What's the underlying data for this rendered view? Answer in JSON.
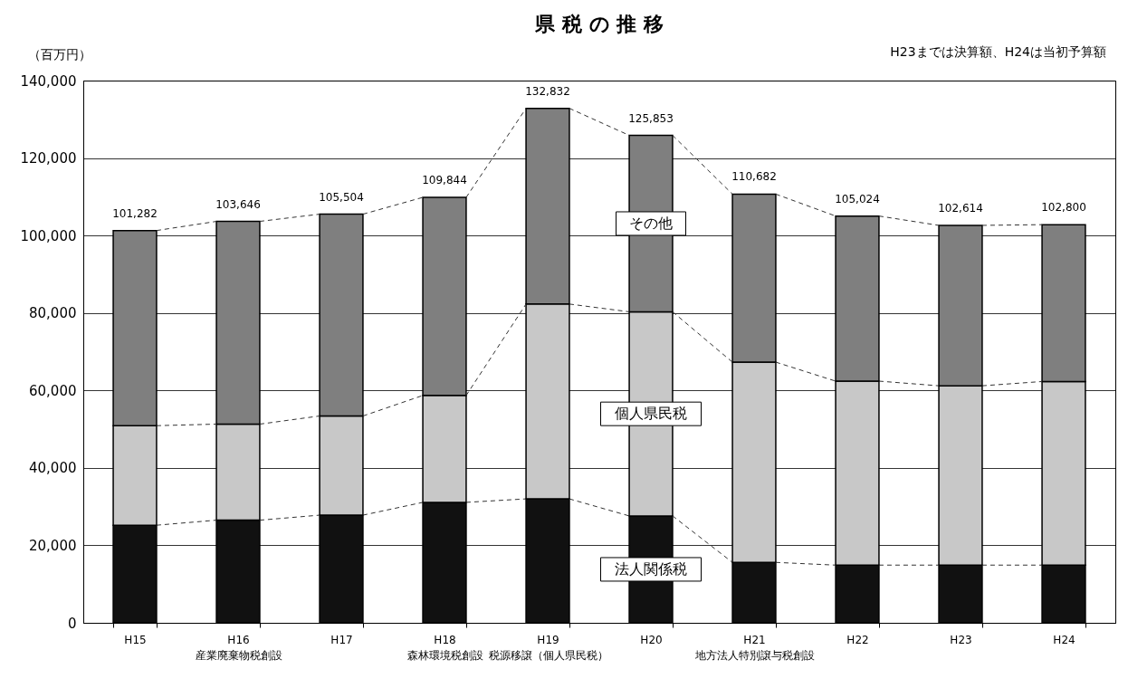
{
  "chart_data": {
    "type": "bar",
    "title": "県 税 の 推 移",
    "ylabel": "（百万円）",
    "annotations": [
      "H23までは決算額、H24は当初予算額"
    ],
    "categories": [
      "H15",
      "H16\n産業廃棄物税創設",
      "H17",
      "H18\n森林環境税創設",
      "H19\n税源移譲（個人県民税）",
      "H20",
      "H21\n地方法人特別譲与税創設",
      "H22",
      "H23",
      "H24"
    ],
    "stacked": true,
    "series": [
      {
        "name": "法人関係税",
        "color": "#111111",
        "values": [
          25200,
          26500,
          27800,
          31100,
          32000,
          27600,
          15600,
          14900,
          14900,
          14900
        ]
      },
      {
        "name": "個人県民税",
        "color": "#c8c8c8",
        "values": [
          25700,
          24800,
          25600,
          27600,
          50300,
          52700,
          51700,
          47500,
          46300,
          47400
        ]
      },
      {
        "name": "その他",
        "color": "#7f7f7f",
        "values": [
          50382,
          52346,
          52104,
          51144,
          50532,
          45553,
          43382,
          42624,
          41414,
          40500
        ]
      }
    ],
    "totals": [
      "101,282",
      "103,646",
      "105,504",
      "109,844",
      "132,832",
      "125,853",
      "110,682",
      "105,024",
      "102,614",
      "102,800"
    ],
    "ylim": [
      0,
      140000
    ],
    "yticks": [
      0,
      {
        "value": 20000,
        "label": "20,000"
      },
      {
        "value": 40000,
        "label": "40,000"
      },
      {
        "value": 60000,
        "label": "60,000"
      },
      {
        "value": 80000,
        "label": "80,000"
      },
      {
        "value": 100000,
        "label": "100,000"
      },
      {
        "value": 120000,
        "label": "120,000"
      },
      {
        "value": 140000,
        "label": "140,000"
      }
    ],
    "grid": "y"
  }
}
